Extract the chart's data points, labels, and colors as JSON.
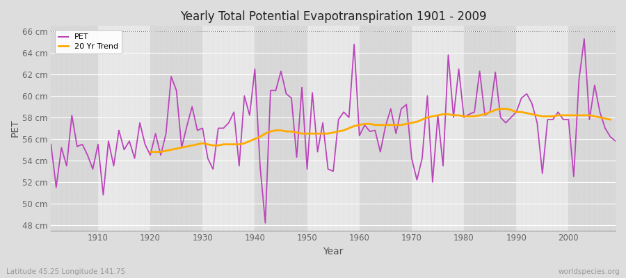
{
  "title": "Yearly Total Potential Evapotranspiration 1901 - 2009",
  "xlabel": "Year",
  "ylabel": "PET",
  "subtitle_left": "Latitude 45.25 Longitude 141.75",
  "subtitle_right": "worldspecies.org",
  "pet_color": "#bb44bb",
  "trend_color": "#ffaa00",
  "background_color": "#dddddd",
  "plot_bg_color": "#e8e8e8",
  "band_color_dark": "#d8d8d8",
  "band_color_light": "#e8e8e8",
  "ylim": [
    47.5,
    66.5
  ],
  "yticks": [
    48,
    50,
    52,
    54,
    56,
    58,
    60,
    62,
    64,
    66
  ],
  "ytick_labels": [
    "48 cm",
    "50 cm",
    "52 cm",
    "54 cm",
    "56 cm",
    "58 cm",
    "60 cm",
    "62 cm",
    "64 cm",
    "66 cm"
  ],
  "years": [
    1901,
    1902,
    1903,
    1904,
    1905,
    1906,
    1907,
    1908,
    1909,
    1910,
    1911,
    1912,
    1913,
    1914,
    1915,
    1916,
    1917,
    1918,
    1919,
    1920,
    1921,
    1922,
    1923,
    1924,
    1925,
    1926,
    1927,
    1928,
    1929,
    1930,
    1931,
    1932,
    1933,
    1934,
    1935,
    1936,
    1937,
    1938,
    1939,
    1940,
    1941,
    1942,
    1943,
    1944,
    1945,
    1946,
    1947,
    1948,
    1949,
    1950,
    1951,
    1952,
    1953,
    1954,
    1955,
    1956,
    1957,
    1958,
    1959,
    1960,
    1961,
    1962,
    1963,
    1964,
    1965,
    1966,
    1967,
    1968,
    1969,
    1970,
    1971,
    1972,
    1973,
    1974,
    1975,
    1976,
    1977,
    1978,
    1979,
    1980,
    1981,
    1982,
    1983,
    1984,
    1985,
    1986,
    1987,
    1988,
    1989,
    1990,
    1991,
    1992,
    1993,
    1994,
    1995,
    1996,
    1997,
    1998,
    1999,
    2000,
    2001,
    2002,
    2003,
    2004,
    2005,
    2006,
    2007,
    2008,
    2009
  ],
  "pet": [
    55.5,
    51.5,
    55.2,
    53.5,
    58.2,
    55.3,
    55.5,
    54.5,
    53.2,
    55.5,
    50.8,
    55.8,
    53.5,
    56.8,
    55.0,
    55.8,
    54.2,
    57.5,
    55.5,
    54.5,
    56.5,
    54.5,
    56.5,
    61.8,
    60.5,
    55.2,
    57.2,
    59.0,
    56.8,
    57.0,
    54.2,
    53.2,
    57.0,
    57.0,
    57.5,
    58.5,
    53.5,
    60.0,
    58.2,
    62.5,
    53.5,
    48.2,
    60.5,
    60.5,
    62.3,
    60.2,
    59.8,
    54.3,
    60.8,
    53.2,
    60.3,
    54.8,
    57.5,
    53.2,
    53.0,
    57.8,
    58.5,
    58.0,
    64.8,
    56.3,
    57.3,
    56.7,
    56.8,
    54.8,
    57.2,
    58.8,
    56.5,
    58.8,
    59.2,
    54.2,
    52.2,
    54.2,
    60.0,
    52.0,
    58.2,
    53.5,
    63.8,
    58.0,
    62.5,
    58.0,
    58.3,
    58.5,
    62.3,
    58.2,
    58.5,
    62.2,
    58.0,
    57.5,
    58.0,
    58.5,
    59.8,
    60.2,
    59.3,
    57.5,
    52.8,
    57.8,
    57.8,
    58.5,
    57.8,
    57.8,
    52.5,
    61.5,
    65.3,
    57.8,
    61.0,
    58.5,
    57.0,
    56.2,
    55.8
  ],
  "trend": [
    null,
    null,
    null,
    null,
    null,
    null,
    null,
    null,
    null,
    null,
    null,
    null,
    null,
    null,
    null,
    null,
    null,
    null,
    null,
    54.8,
    54.8,
    54.8,
    54.9,
    55.0,
    55.1,
    55.2,
    55.3,
    55.4,
    55.5,
    55.6,
    55.5,
    55.4,
    55.4,
    55.5,
    55.5,
    55.5,
    55.5,
    55.6,
    55.8,
    56.0,
    56.2,
    56.5,
    56.7,
    56.8,
    56.8,
    56.7,
    56.7,
    56.6,
    56.5,
    56.5,
    56.5,
    56.5,
    56.5,
    56.5,
    56.6,
    56.7,
    56.8,
    57.0,
    57.2,
    57.3,
    57.4,
    57.4,
    57.3,
    57.3,
    57.3,
    57.3,
    57.3,
    57.3,
    57.4,
    57.5,
    57.6,
    57.8,
    58.0,
    58.1,
    58.2,
    58.3,
    58.3,
    58.2,
    58.2,
    58.1,
    58.1,
    58.1,
    58.2,
    58.3,
    58.5,
    58.7,
    58.8,
    58.8,
    58.7,
    58.5,
    58.5,
    58.4,
    58.3,
    58.2,
    58.1,
    58.1,
    58.1,
    58.2,
    58.2,
    58.2,
    58.2,
    58.2,
    58.2,
    58.2,
    58.1,
    58.0,
    57.9,
    57.8
  ]
}
